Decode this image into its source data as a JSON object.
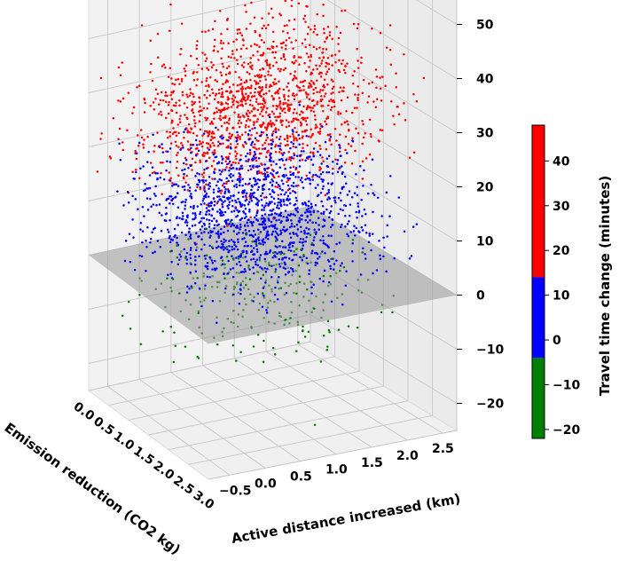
{
  "chart_data": {
    "type": "scatter",
    "projection": "3d",
    "xlabel": "Active distance increased (km)",
    "ylabel": "Emission reduction (CO2 kg)",
    "zlabel": "",
    "x_ticks": [
      "−0.5",
      "0.0",
      "0.5",
      "1.0",
      "1.5",
      "2.0",
      "2.5"
    ],
    "y_ticks": [
      "0.0",
      "0.5",
      "1.0",
      "1.5",
      "2.0",
      "2.5",
      "3.0"
    ],
    "z_ticks": [
      "−20",
      "−10",
      "0",
      "10",
      "20",
      "30",
      "40",
      "50"
    ],
    "xlim": [
      -0.8,
      2.7
    ],
    "ylim": [
      0.0,
      3.0
    ],
    "zlim": [
      -25,
      55
    ],
    "reference_plane": {
      "z": 0,
      "color": "#999999",
      "opacity": 0.55
    },
    "series": [
      {
        "color": "#ff0000",
        "z_range": [
          15,
          55
        ],
        "approx_points": 1400,
        "points_sample": [
          [
            0.8,
            1.2,
            30
          ],
          [
            1.5,
            1.8,
            42
          ],
          [
            0.2,
            0.9,
            25
          ],
          [
            1.9,
            2.4,
            48
          ],
          [
            1.1,
            1.5,
            35
          ],
          [
            2.3,
            2.0,
            44
          ],
          [
            0.5,
            0.6,
            22
          ]
        ]
      },
      {
        "color": "#0000ff",
        "z_range": [
          2,
          20
        ],
        "approx_points": 1400,
        "points_sample": [
          [
            0.3,
            1.0,
            12
          ],
          [
            0.9,
            1.4,
            8
          ],
          [
            -0.2,
            0.7,
            15
          ],
          [
            1.4,
            2.0,
            10
          ],
          [
            0.6,
            1.8,
            5
          ],
          [
            1.8,
            1.2,
            14
          ]
        ]
      },
      {
        "color": "#008000",
        "z_range": [
          -20,
          2
        ],
        "approx_points": 260,
        "points_sample": [
          [
            0.1,
            0.8,
            -5
          ],
          [
            0.7,
            1.6,
            -12
          ],
          [
            1.2,
            2.2,
            -3
          ],
          [
            -0.3,
            0.5,
            -15
          ],
          [
            1.6,
            1.9,
            -8
          ]
        ]
      }
    ],
    "colorbar": {
      "label": "Travel time change (minutes)",
      "ticks": [
        "−20",
        "−10",
        "0",
        "10",
        "20",
        "30",
        "40"
      ],
      "range": [
        -22,
        48
      ],
      "segments": [
        {
          "from": -22,
          "to": -4,
          "color": "#008000"
        },
        {
          "from": -4,
          "to": 14,
          "color": "#0000ff"
        },
        {
          "from": 14,
          "to": 48,
          "color": "#ff0000"
        }
      ]
    },
    "grid": true
  }
}
